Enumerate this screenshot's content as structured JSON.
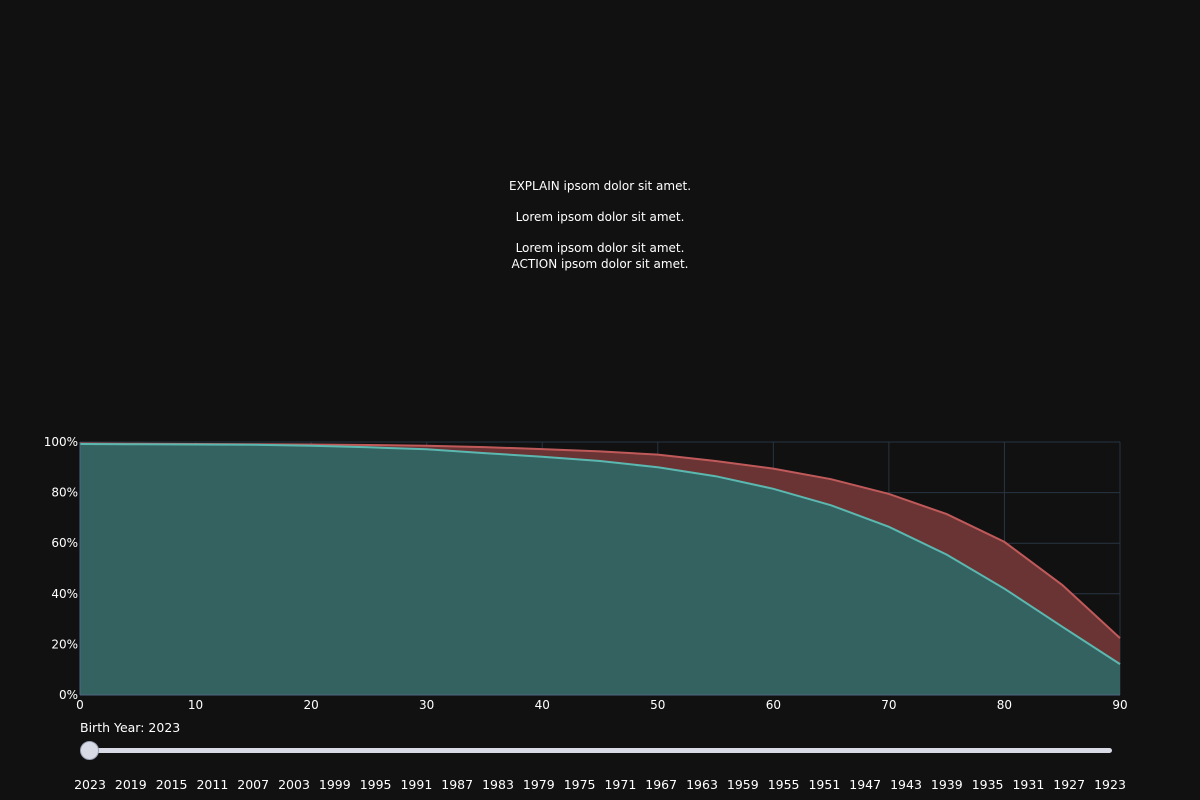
{
  "annotation": {
    "line1": "EXPLAIN ipsom dolor sit amet.",
    "line2": "Lorem ipsom dolor sit amet.",
    "line3": "Lorem ipsom dolor sit amet.",
    "line4": "ACTION ipsom dolor sit amet."
  },
  "chart_data": {
    "type": "area",
    "title": "",
    "xlabel": "",
    "ylabel": "",
    "xlim": [
      0,
      90
    ],
    "ylim": [
      0,
      100
    ],
    "x_ticks": [
      "0",
      "10",
      "20",
      "30",
      "40",
      "50",
      "60",
      "70",
      "80",
      "90"
    ],
    "y_ticks": [
      "0%",
      "20%",
      "40%",
      "60%",
      "80%",
      "100%"
    ],
    "grid": true,
    "series": [
      {
        "color": "#c05a5a",
        "fill": "#6b3434",
        "x": [
          0,
          5,
          10,
          15,
          20,
          25,
          30,
          35,
          40,
          45,
          50,
          55,
          60,
          65,
          70,
          75,
          80,
          85,
          90
        ],
        "values": [
          99.4,
          99.3,
          99.2,
          99.1,
          99.0,
          98.8,
          98.5,
          98.0,
          97.2,
          96.3,
          95.0,
          92.5,
          89.5,
          85.3,
          79.5,
          71.5,
          60.5,
          43.5,
          22.5
        ]
      },
      {
        "color": "#5bb8b0",
        "fill": "#346261",
        "x": [
          0,
          5,
          10,
          15,
          20,
          25,
          30,
          35,
          40,
          45,
          50,
          55,
          60,
          65,
          70,
          75,
          80,
          85,
          90
        ],
        "values": [
          99.2,
          99.1,
          99.0,
          98.9,
          98.5,
          97.9,
          97.1,
          95.6,
          94.2,
          92.5,
          90.0,
          86.5,
          81.5,
          75.0,
          66.5,
          55.5,
          42.0,
          27.0,
          12.2
        ]
      }
    ]
  },
  "slider": {
    "label": "Birth Year: 2023",
    "value": "2023",
    "ticks": [
      "2023",
      "2019",
      "2015",
      "2011",
      "2007",
      "2003",
      "1999",
      "1995",
      "1991",
      "1987",
      "1983",
      "1979",
      "1975",
      "1971",
      "1967",
      "1963",
      "1959",
      "1955",
      "1951",
      "1947",
      "1943",
      "1939",
      "1935",
      "1931",
      "1927",
      "1923"
    ]
  }
}
